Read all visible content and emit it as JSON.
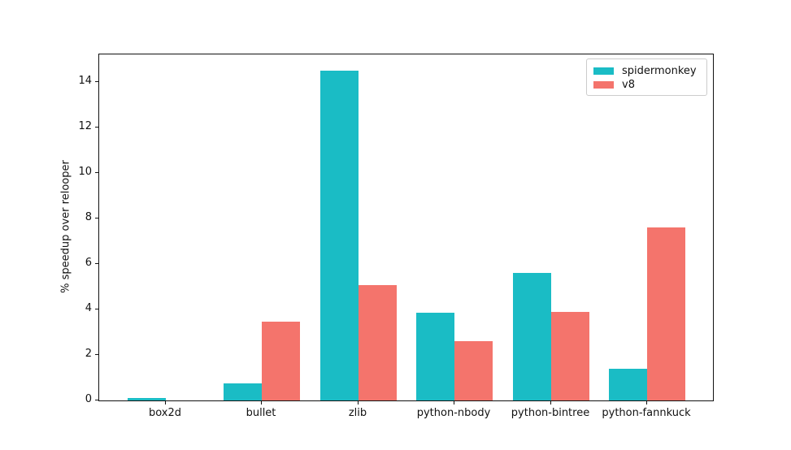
{
  "chart_data": {
    "type": "bar",
    "title": "",
    "xlabel": "",
    "ylabel": "% speedup over relooper",
    "categories": [
      "box2d",
      "bullet",
      "zlib",
      "python-nbody",
      "python-bintree",
      "python-fannkuck"
    ],
    "series": [
      {
        "name": "spidermonkey",
        "color": "#1abcc5",
        "values": [
          0.1,
          0.75,
          14.5,
          3.85,
          5.6,
          1.4
        ]
      },
      {
        "name": "v8",
        "color": "#f4746c",
        "values": [
          0.0,
          3.45,
          5.05,
          2.6,
          3.9,
          7.6
        ]
      }
    ],
    "yticks": [
      0,
      2,
      4,
      6,
      8,
      10,
      12,
      14
    ],
    "ylim": [
      0,
      15.2
    ],
    "grid": false,
    "legend_position": "upper right",
    "colors": {
      "spidermonkey": "#1abcc5",
      "v8": "#f4746c",
      "spine": "#111111",
      "legend_border": "#cccccc"
    }
  }
}
